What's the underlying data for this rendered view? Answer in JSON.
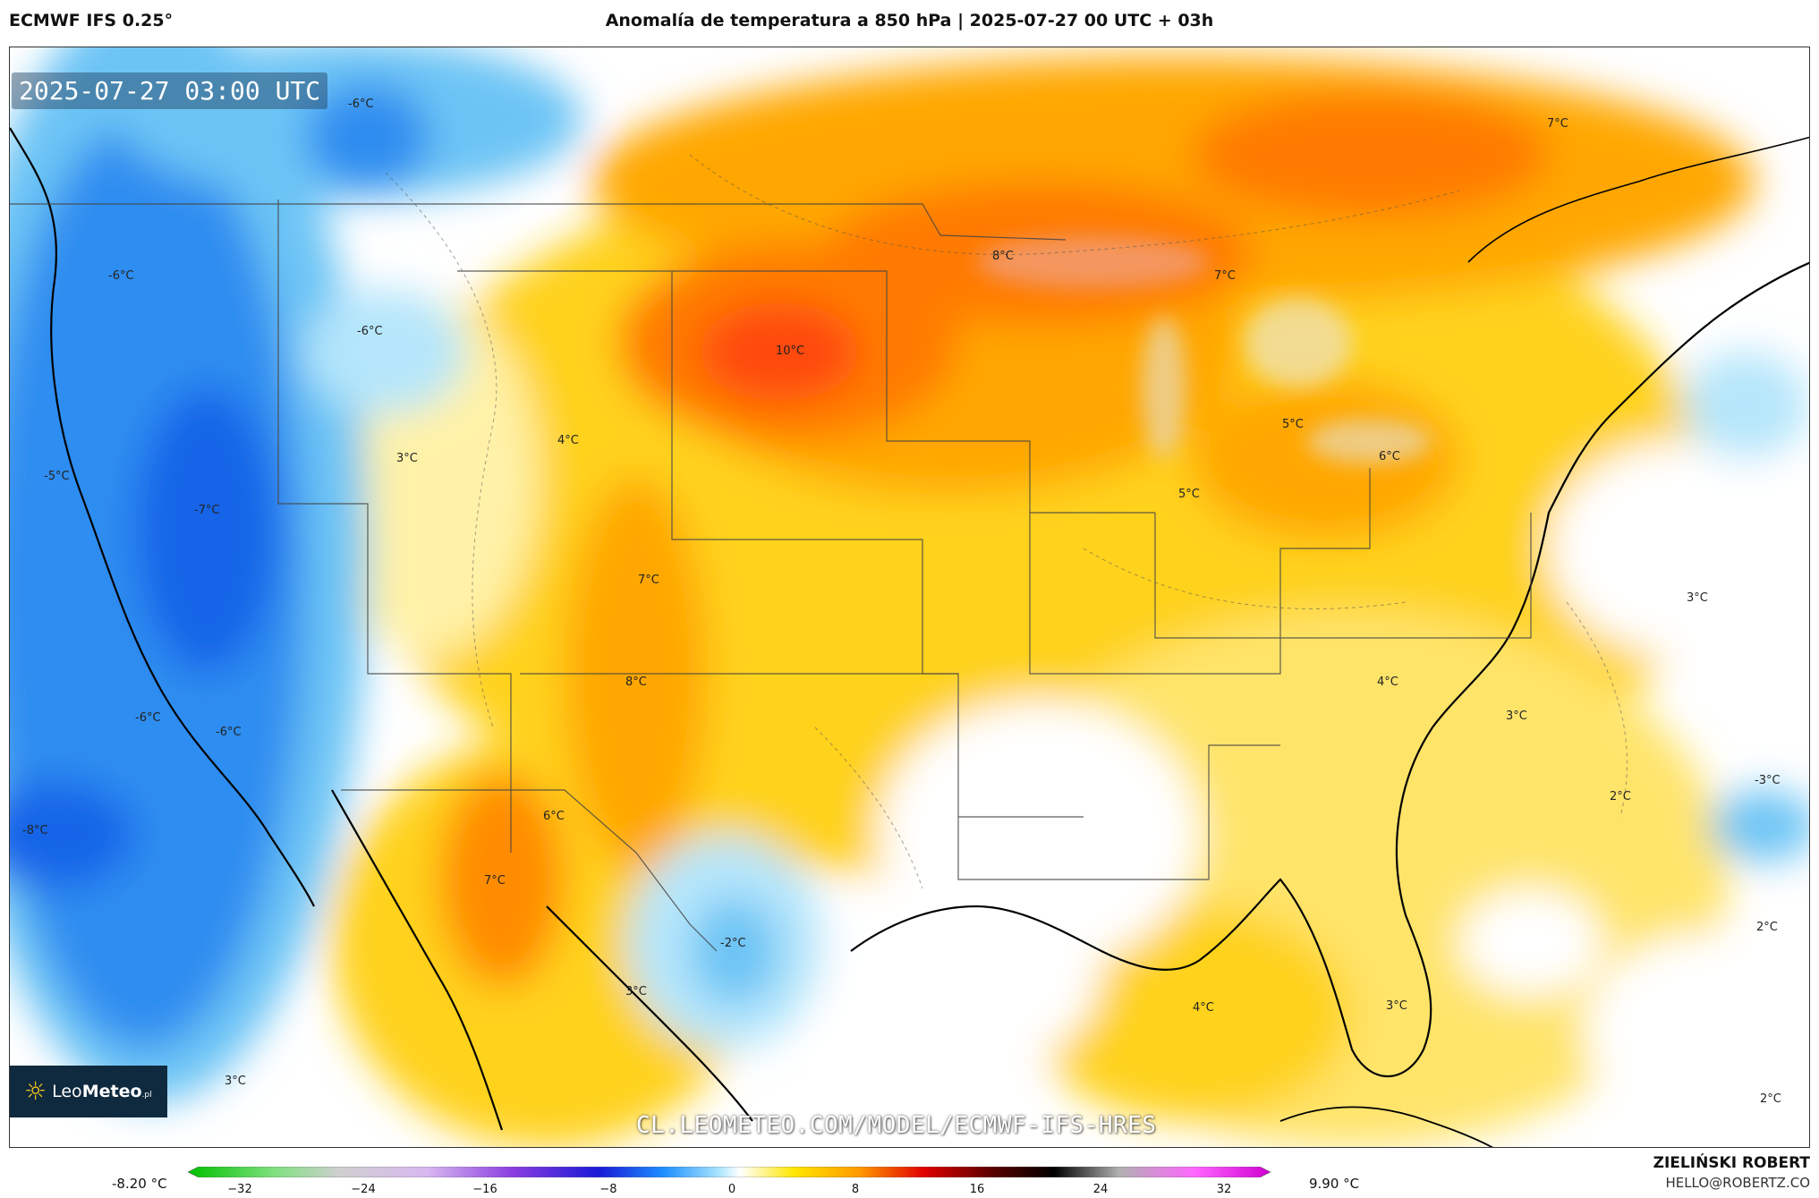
{
  "header": {
    "model": "ECMWF IFS 0.25°",
    "title": "Anomalía de temperatura a 850 hPa | 2025-07-27 00 UTC + 03h"
  },
  "map": {
    "valid_time": "2025-07-27 03:00 UTC",
    "watermark": "CL.LEOMETEO.COM/MODEL/ECMWF-IFS-HRES",
    "logo": {
      "brand_light": "Leo",
      "brand_bold": "Meteo",
      "suffix": ".pl"
    },
    "labels": {
      "l1": "-6°C",
      "l2": "-6°C",
      "l3": "-6°C",
      "l4": "-5°C",
      "l5": "-7°C",
      "l6": "-6°C",
      "l7": "-6°C",
      "l8": "-8°C",
      "l9": "3°C",
      "l10": "4°C",
      "l11": "10°C",
      "l12": "8°C",
      "l13": "7°C",
      "l14": "7°C",
      "l15": "7°C",
      "l16": "8°C",
      "l17": "6°C",
      "l18": "7°C",
      "l19": "-2°C",
      "l20": "3°C",
      "l21": "3°C",
      "l22": "5°C",
      "l23": "5°C",
      "l24": "6°C",
      "l25": "3°C",
      "l26": "4°C",
      "l27": "3°C",
      "l28": "2°C",
      "l29": "-3°C",
      "l30": "2°C",
      "l31": "4°C",
      "l32": "3°C",
      "l33": "2°C"
    },
    "colors": {
      "cold_deep": "#1565e8",
      "cold": "#2f8df0",
      "cool": "#6cc4f5",
      "cool_light": "#b5e6fb",
      "neutral": "#ffffff",
      "warm_light": "#fff2a8",
      "warm": "#ffd21f",
      "warmer": "#ffa700",
      "hot": "#ff7a00",
      "hotter": "#ff4a10"
    }
  },
  "colorbar": {
    "min_label": "-8.20 °C",
    "max_label": "9.90 °C",
    "ticks": [
      "−32",
      "−24",
      "−16",
      "−8",
      "0",
      "8",
      "16",
      "24",
      "32"
    ]
  },
  "footer": {
    "author": "ZIELIŃSKI ROBERT",
    "email": "HELLO@ROBERTZ.CO"
  }
}
